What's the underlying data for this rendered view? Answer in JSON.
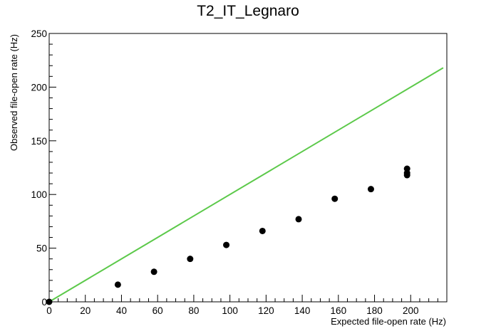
{
  "chart_data": {
    "type": "scatter",
    "title": "T2_IT_Legnaro",
    "xlabel": "Expected file-open rate (Hz)",
    "ylabel": "Observed file-open rate (Hz)",
    "xlim": [
      0,
      220
    ],
    "ylim": [
      0,
      250
    ],
    "x_ticks": [
      "0",
      "20",
      "40",
      "60",
      "80",
      "100",
      "120",
      "140",
      "160",
      "180",
      "200"
    ],
    "y_ticks": [
      "0",
      "50",
      "100",
      "150",
      "200",
      "250"
    ],
    "grid": false,
    "points": {
      "x": [
        0,
        38,
        58,
        78,
        98,
        118,
        138,
        158,
        178,
        198,
        198,
        198
      ],
      "y": [
        0,
        16,
        28,
        40,
        53,
        66,
        77,
        96,
        105,
        118,
        120,
        124
      ],
      "color": "#000000"
    },
    "reference_line": {
      "x": [
        0,
        218
      ],
      "y": [
        0,
        218
      ],
      "color": "#5cc94a"
    }
  }
}
